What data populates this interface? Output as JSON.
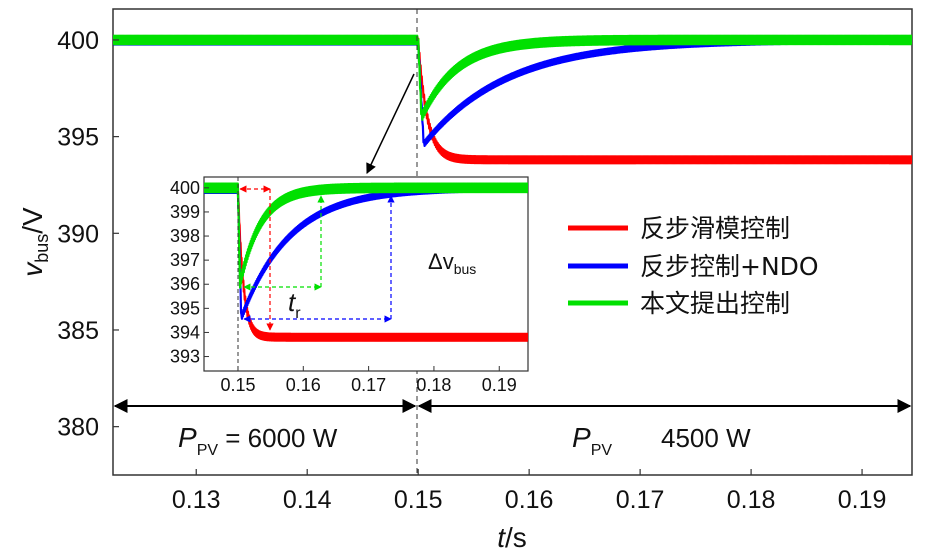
{
  "chart_data": {
    "type": "line",
    "xlabel_main": "t",
    "xlabel_unit": "/s",
    "ylabel_main": "v",
    "ylabel_sub": "bus",
    "ylabel_unit": "/V",
    "xlim": [
      0.1225,
      0.1945
    ],
    "ylim": [
      377.5,
      401.6
    ],
    "xticks": [
      0.13,
      0.14,
      0.15,
      0.16,
      0.17,
      0.18,
      0.19
    ],
    "xtick_labels": [
      "0.13",
      "0.14",
      "0.15",
      "0.16",
      "0.17",
      "0.18",
      "0.19"
    ],
    "yticks": [
      380,
      385,
      390,
      395,
      400
    ],
    "ytick_labels": [
      "380",
      "385",
      "390",
      "395",
      "400"
    ],
    "step_time": 0.15,
    "series": [
      {
        "name": "反步滑模控制",
        "color": "#ff0000",
        "pre": 400.0,
        "min": 393.8,
        "final": 393.8,
        "tau": 0.0008,
        "overshoot": 0,
        "ripple": 0.18
      },
      {
        "name": "反步控制+NDO",
        "color": "#0000ff",
        "pre": 399.9,
        "min": 394.6,
        "final": 400.0,
        "tau": 0.0075,
        "t_min": 0.1505,
        "ripple": 0.14
      },
      {
        "name": "本文提出控制",
        "color": "#00e000",
        "pre": 400.0,
        "min": 396.0,
        "final": 400.0,
        "tau": 0.0032,
        "t_min": 0.1503,
        "ripple": 0.22
      }
    ],
    "inset": {
      "xlim": [
        0.1448,
        0.1944
      ],
      "ylim": [
        392.4,
        400.45
      ],
      "xticks": [
        0.15,
        0.16,
        0.17,
        0.18,
        0.19
      ],
      "xtick_labels": [
        "0.15",
        "0.16",
        "0.17",
        "0.18",
        "0.19"
      ],
      "yticks": [
        393,
        394,
        395,
        396,
        397,
        398,
        399,
        400
      ],
      "ytick_labels": [
        "393",
        "394",
        "395",
        "396",
        "397",
        "398",
        "399",
        "400"
      ],
      "tr_label": "t",
      "tr_sub": "r",
      "dv_label": "Δv",
      "dv_sub": "bus"
    },
    "region_left": {
      "label": "P",
      "sub": "PV",
      "value": " = 6000 W"
    },
    "region_right": {
      "label": "P",
      "sub": "PV",
      "value": "4500 W"
    }
  },
  "legend": {
    "items": [
      {
        "label": "反步滑模控制",
        "color": "#ff0000"
      },
      {
        "label": "反步控制+NDO",
        "color": "#0000ff"
      },
      {
        "label": "本文提出控制",
        "color": "#00e000"
      }
    ]
  }
}
